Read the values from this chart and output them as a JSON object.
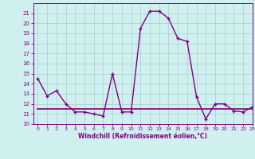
{
  "title": "",
  "xlabel": "Windchill (Refroidissement éolien,°C)",
  "x": [
    0,
    1,
    2,
    3,
    4,
    5,
    6,
    7,
    8,
    9,
    10,
    11,
    12,
    13,
    14,
    15,
    16,
    17,
    18,
    19,
    20,
    21,
    22,
    23
  ],
  "y_main": [
    14.5,
    12.8,
    13.3,
    12.0,
    11.2,
    11.2,
    11.0,
    10.8,
    15.0,
    11.2,
    11.2,
    19.5,
    21.2,
    21.2,
    20.5,
    18.5,
    18.2,
    12.7,
    10.5,
    12.0,
    12.0,
    11.3,
    11.2,
    11.7
  ],
  "y_flat": [
    11.5,
    11.5,
    11.5,
    11.5,
    11.5,
    11.5,
    11.5,
    11.5,
    11.5,
    11.5,
    11.5,
    11.5,
    11.5,
    11.5,
    11.5,
    11.5,
    11.5,
    11.5,
    11.5,
    11.5,
    11.5,
    11.5,
    11.5,
    11.5
  ],
  "line_color": "#800080",
  "flat_line_color": "#800080",
  "bg_color": "#d0f0f0",
  "grid_color": "#b0d8d8",
  "axis_color": "#800080",
  "text_color": "#800080",
  "ylim": [
    10,
    22
  ],
  "xlim": [
    -0.5,
    23
  ],
  "yticks": [
    10,
    11,
    12,
    13,
    14,
    15,
    16,
    17,
    18,
    19,
    20,
    21
  ],
  "xticks": [
    0,
    1,
    2,
    3,
    4,
    5,
    6,
    7,
    8,
    9,
    10,
    11,
    12,
    13,
    14,
    15,
    16,
    17,
    18,
    19,
    20,
    21,
    22,
    23
  ],
  "marker": "+"
}
